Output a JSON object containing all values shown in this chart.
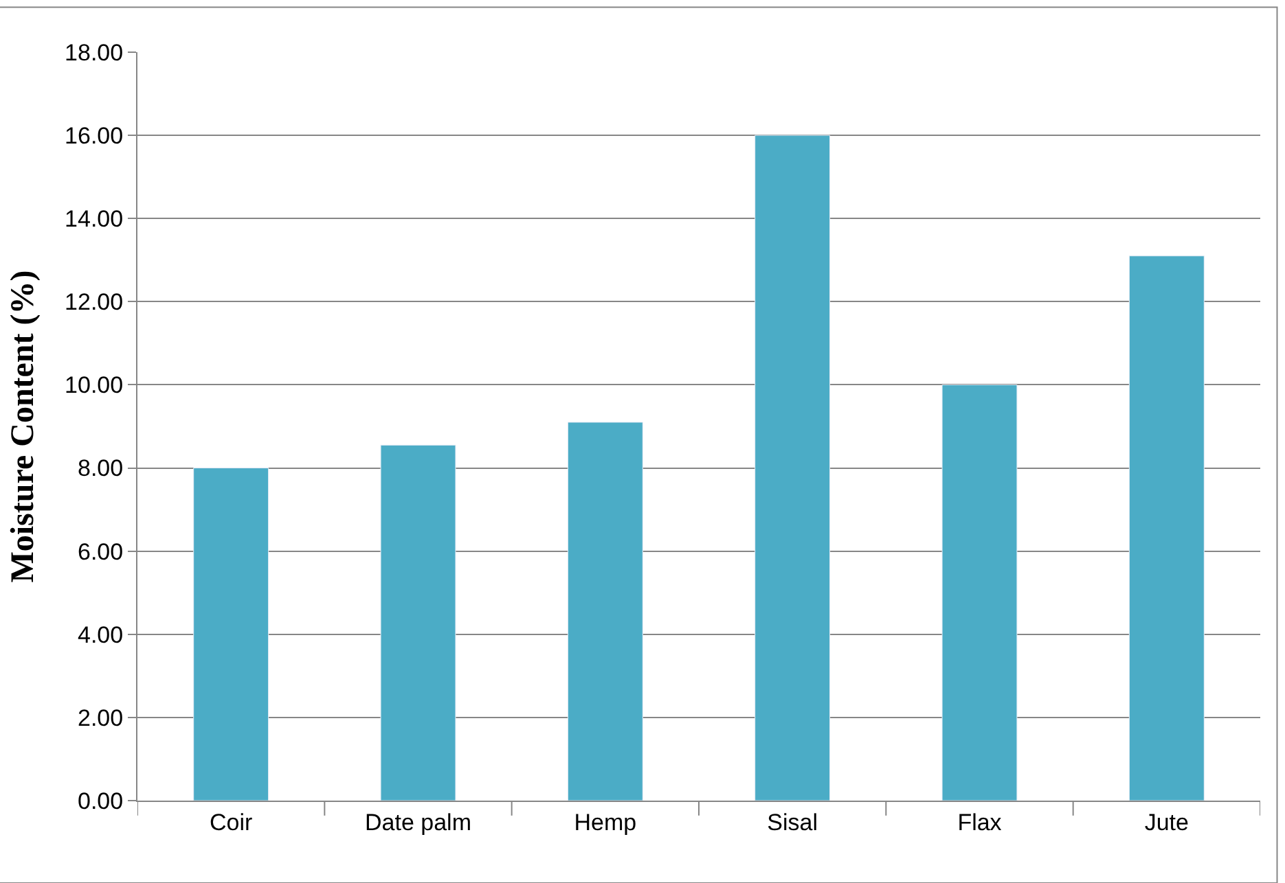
{
  "chart_data": {
    "type": "bar",
    "ylabel": "Moisture Content (%)",
    "categories": [
      "Coir",
      "Date palm",
      "Hemp",
      "Sisal",
      "Flax",
      "Jute"
    ],
    "values": [
      8.0,
      8.55,
      9.1,
      16.0,
      10.0,
      13.1
    ],
    "color": "#4bacc6",
    "ylim": [
      0,
      18
    ],
    "yticks": [
      {
        "value": 0,
        "label": "0.00"
      },
      {
        "value": 2,
        "label": "2.00"
      },
      {
        "value": 4,
        "label": "4.00"
      },
      {
        "value": 6,
        "label": "6.00"
      },
      {
        "value": 8,
        "label": "8.00"
      },
      {
        "value": 10,
        "label": "10.00"
      },
      {
        "value": 12,
        "label": "12.00"
      },
      {
        "value": 14,
        "label": "14.00"
      },
      {
        "value": 16,
        "label": "16.00"
      },
      {
        "value": 18,
        "label": "18.00"
      }
    ],
    "grid": "y"
  }
}
